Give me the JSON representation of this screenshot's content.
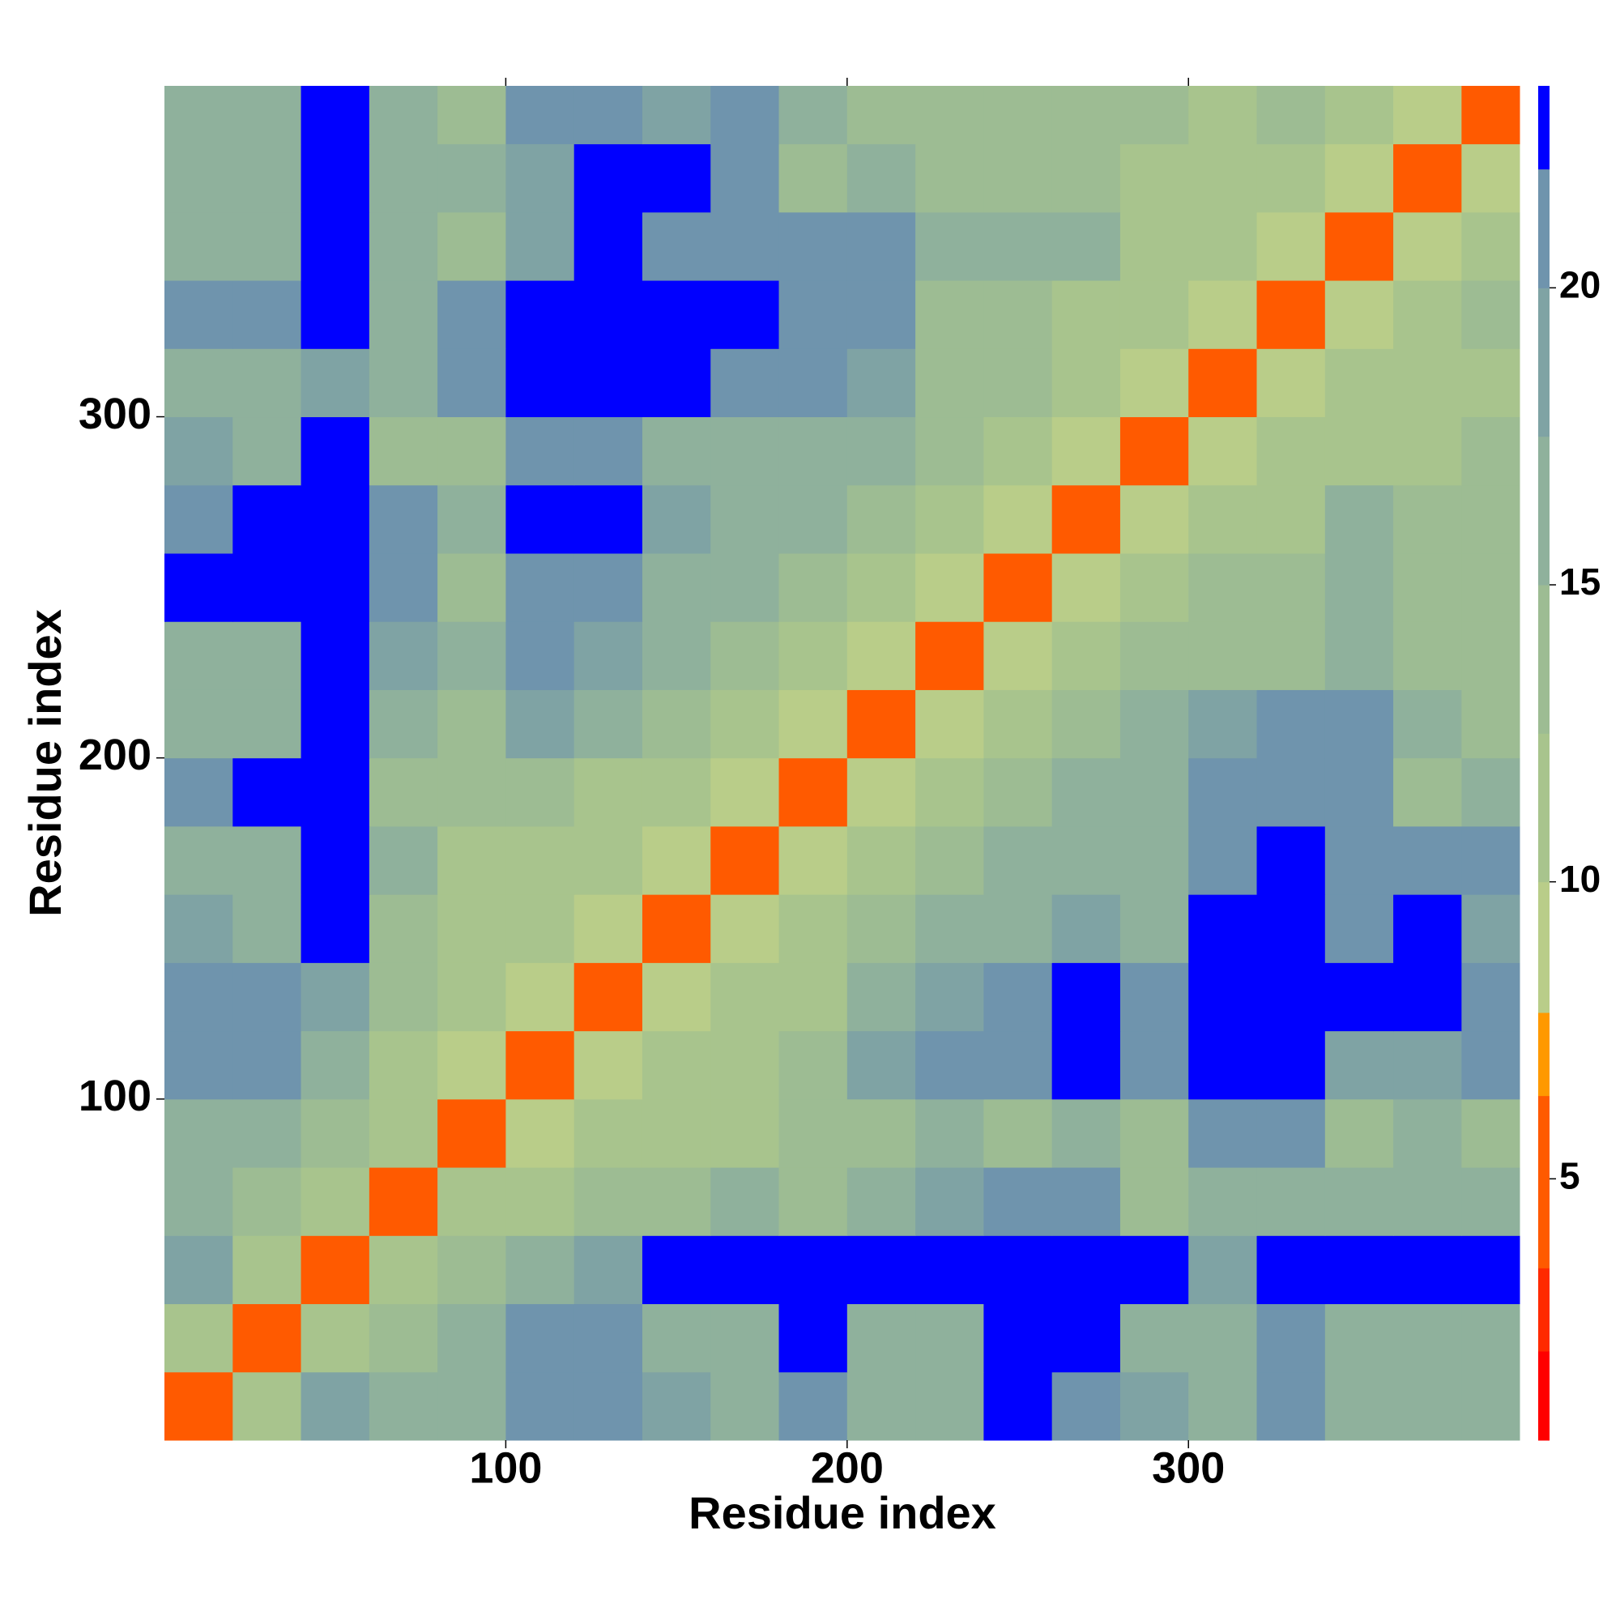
{
  "chart_data": {
    "type": "heatmap",
    "xlabel": "Residue index",
    "ylabel": "Residue index",
    "xlim": [
      0,
      397
    ],
    "ylim": [
      0,
      397
    ],
    "xticks": [
      100,
      200,
      300
    ],
    "yticks": [
      100,
      200,
      300
    ],
    "xbins": [
      0,
      20,
      40,
      60,
      80,
      100,
      120,
      140,
      160,
      180,
      200,
      220,
      240,
      260,
      280,
      300,
      320,
      340,
      360,
      380,
      397
    ],
    "ybins": [
      0,
      20,
      40,
      60,
      80,
      100,
      120,
      140,
      160,
      180,
      200,
      220,
      240,
      260,
      280,
      300,
      320,
      340,
      360,
      380,
      397
    ],
    "z": [
      [
        6,
        11,
        18,
        16,
        16,
        20,
        21,
        19,
        16,
        21,
        16,
        15,
        22,
        21,
        18,
        17,
        21,
        16,
        17,
        16
      ],
      [
        11,
        6,
        11,
        14,
        17,
        21,
        21,
        17,
        15,
        22,
        15,
        15,
        22,
        22,
        17,
        16,
        20,
        15,
        17,
        16
      ],
      [
        18,
        11,
        6,
        10,
        13,
        17,
        19,
        22,
        22,
        22,
        22,
        22,
        22,
        22,
        22,
        18,
        22,
        22,
        22,
        22
      ],
      [
        16,
        14,
        10,
        6,
        10,
        12,
        13,
        14,
        15,
        13,
        16,
        18,
        20,
        21,
        14,
        16,
        17,
        15,
        16,
        17
      ],
      [
        16,
        17,
        13,
        10,
        6,
        9,
        12,
        12,
        11,
        13,
        14,
        16,
        14,
        16,
        13,
        20,
        20,
        14,
        15,
        14
      ],
      [
        20,
        21,
        17,
        12,
        9,
        6,
        9,
        12,
        12,
        14,
        18,
        21,
        20,
        22,
        21,
        22,
        22,
        19,
        19,
        21
      ],
      [
        21,
        21,
        19,
        13,
        12,
        9,
        6,
        9,
        12,
        12,
        16,
        18,
        21,
        22,
        21,
        22,
        22,
        22,
        22,
        21
      ],
      [
        19,
        17,
        22,
        14,
        12,
        12,
        9,
        6,
        9,
        11,
        14,
        15,
        17,
        19,
        17,
        22,
        22,
        20,
        22,
        18
      ],
      [
        16,
        15,
        22,
        15,
        11,
        12,
        12,
        9,
        6,
        9,
        12,
        14,
        16,
        17,
        17,
        20,
        22,
        21,
        21,
        20
      ],
      [
        21,
        22,
        22,
        13,
        13,
        14,
        12,
        11,
        9,
        6,
        9,
        12,
        14,
        17,
        16,
        20,
        21,
        21,
        14,
        15
      ],
      [
        16,
        15,
        22,
        16,
        14,
        18,
        16,
        14,
        12,
        9,
        6,
        9,
        12,
        14,
        15,
        19,
        21,
        20,
        15,
        13
      ],
      [
        15,
        15,
        22,
        18,
        16,
        21,
        18,
        15,
        14,
        12,
        9,
        6,
        9,
        12,
        14,
        14,
        14,
        15,
        14,
        13
      ],
      [
        22,
        22,
        22,
        20,
        14,
        20,
        21,
        17,
        16,
        14,
        12,
        9,
        6,
        9,
        11,
        14,
        13,
        16,
        14,
        13
      ],
      [
        21,
        22,
        22,
        21,
        16,
        22,
        22,
        19,
        17,
        17,
        14,
        12,
        9,
        6,
        9,
        12,
        12,
        15,
        13,
        14
      ],
      [
        18,
        17,
        22,
        14,
        13,
        21,
        21,
        17,
        17,
        16,
        15,
        14,
        11,
        9,
        6,
        9,
        11,
        12,
        12,
        13
      ],
      [
        17,
        16,
        18,
        16,
        20,
        22,
        22,
        22,
        20,
        20,
        19,
        14,
        14,
        12,
        9,
        6,
        9,
        11,
        12,
        12
      ],
      [
        21,
        20,
        22,
        17,
        20,
        22,
        22,
        22,
        22,
        21,
        21,
        14,
        13,
        12,
        11,
        9,
        6,
        9,
        11,
        13
      ],
      [
        16,
        15,
        22,
        15,
        14,
        19,
        22,
        20,
        21,
        21,
        20,
        15,
        16,
        15,
        12,
        11,
        9,
        6,
        9,
        10
      ],
      [
        17,
        17,
        22,
        16,
        15,
        19,
        22,
        22,
        21,
        14,
        15,
        14,
        14,
        13,
        12,
        12,
        11,
        9,
        6,
        9
      ],
      [
        16,
        16,
        22,
        17,
        14,
        21,
        21,
        18,
        20,
        15,
        13,
        13,
        13,
        14,
        13,
        12,
        13,
        10,
        9,
        6
      ]
    ],
    "clim": [
      0.6,
      23.4
    ],
    "colorscale": [
      {
        "value": 0.6,
        "color": "#ff0000"
      },
      {
        "value": 2.1,
        "color": "#ff2a00"
      },
      {
        "value": 3.5,
        "color": "#ff5a00"
      },
      {
        "value": 6.4,
        "color": "#ff9900"
      },
      {
        "value": 7.8,
        "color": "#b9cd89"
      },
      {
        "value": 10,
        "color": "#a8c48d"
      },
      {
        "value": 12.5,
        "color": "#9dbc93"
      },
      {
        "value": 15,
        "color": "#8fb19c"
      },
      {
        "value": 17.5,
        "color": "#7fa3a4"
      },
      {
        "value": 20,
        "color": "#6f94ad"
      },
      {
        "value": 22,
        "color": "#0000ff"
      }
    ],
    "cticks": [
      5,
      10,
      15,
      20
    ]
  }
}
